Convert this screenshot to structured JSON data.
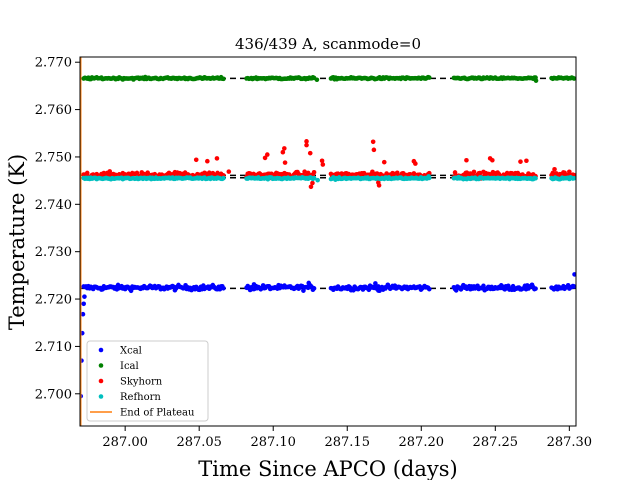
{
  "chart_data": {
    "type": "scatter",
    "title": "436/439 A, scanmode=0",
    "xlabel": "Time Since APCO (days)",
    "ylabel": "Temperature (K)",
    "xlim": [
      286.9695,
      287.3045
    ],
    "ylim": [
      2.6932,
      2.7711
    ],
    "xticks": [
      "287.00",
      "287.05",
      "287.10",
      "287.15",
      "287.20",
      "287.25",
      "287.30"
    ],
    "yticks": [
      "2.700",
      "2.710",
      "2.720",
      "2.730",
      "2.740",
      "2.750",
      "2.760",
      "2.770"
    ],
    "xtick_values": [
      287.0,
      287.05,
      287.1,
      287.15,
      287.2,
      287.25,
      287.3
    ],
    "ytick_values": [
      2.7,
      2.71,
      2.72,
      2.73,
      2.74,
      2.75,
      2.76,
      2.77
    ],
    "grid": false,
    "legend_position": "lower-left",
    "segments": [
      [
        286.972,
        287.067
      ],
      [
        287.082,
        287.128
      ],
      [
        287.139,
        287.206
      ],
      [
        287.222,
        287.278
      ],
      [
        287.288,
        287.304
      ]
    ],
    "series": [
      {
        "name": "Xcal",
        "color": "#0000ff",
        "level": 2.7224,
        "plateau_line": 2.72225,
        "noise": 0.00025,
        "extra_points": [
          [
            286.97,
            2.6995
          ],
          [
            286.9705,
            2.707
          ],
          [
            286.971,
            2.7128
          ],
          [
            286.9715,
            2.7168
          ],
          [
            286.972,
            2.719
          ],
          [
            286.9725,
            2.7205
          ],
          [
            287.124,
            2.7234
          ],
          [
            287.087,
            2.7231
          ],
          [
            287.169,
            2.7233
          ],
          [
            287.171,
            2.7218
          ],
          [
            287.3035,
            2.7252
          ]
        ]
      },
      {
        "name": "Ical",
        "color": "#008000",
        "level": 2.7666,
        "plateau_line": 2.7666,
        "noise": 0.0001,
        "extra_points": [
          [
            287.2775,
            2.7661
          ],
          [
            287.1295,
            2.7663
          ]
        ]
      },
      {
        "name": "Skyhorn",
        "color": "#ff0000",
        "level": 2.7462,
        "plateau_line": 2.7461,
        "noise": 0.0003,
        "extra_points": [
          [
            287.048,
            2.7494
          ],
          [
            287.0555,
            2.7491
          ],
          [
            287.062,
            2.7497
          ],
          [
            287.096,
            2.7505
          ],
          [
            287.0945,
            2.7498
          ],
          [
            287.1075,
            2.7518
          ],
          [
            287.1065,
            2.751
          ],
          [
            287.108,
            2.7488
          ],
          [
            287.1225,
            2.7533
          ],
          [
            287.1225,
            2.7525
          ],
          [
            287.125,
            2.7508
          ],
          [
            287.1265,
            2.7445
          ],
          [
            287.1255,
            2.7437
          ],
          [
            287.133,
            2.7492
          ],
          [
            287.1335,
            2.7484
          ],
          [
            287.1675,
            2.7532
          ],
          [
            287.168,
            2.7515
          ],
          [
            287.171,
            2.7446
          ],
          [
            287.1715,
            2.744
          ],
          [
            287.175,
            2.7489
          ],
          [
            287.195,
            2.7491
          ],
          [
            287.196,
            2.7486
          ],
          [
            287.2305,
            2.7493
          ],
          [
            287.2465,
            2.7497
          ],
          [
            287.248,
            2.7493
          ],
          [
            287.267,
            2.749
          ],
          [
            287.271,
            2.7492
          ],
          [
            287.07,
            2.7469
          ],
          [
            287.0405,
            2.7467
          ],
          [
            287.29,
            2.7474
          ]
        ]
      },
      {
        "name": "Refhorn",
        "color": "#00bfbf",
        "level": 2.7455,
        "plateau_line": 2.7456,
        "noise": 0.0001,
        "extra_points": [
          [
            287.13,
            2.7451
          ],
          [
            287.142,
            2.7452
          ],
          [
            287.205,
            2.7459
          ]
        ]
      }
    ],
    "plateau_end": {
      "name": "End of Plateau",
      "x": 286.97,
      "color": "#ff7f0e"
    }
  }
}
